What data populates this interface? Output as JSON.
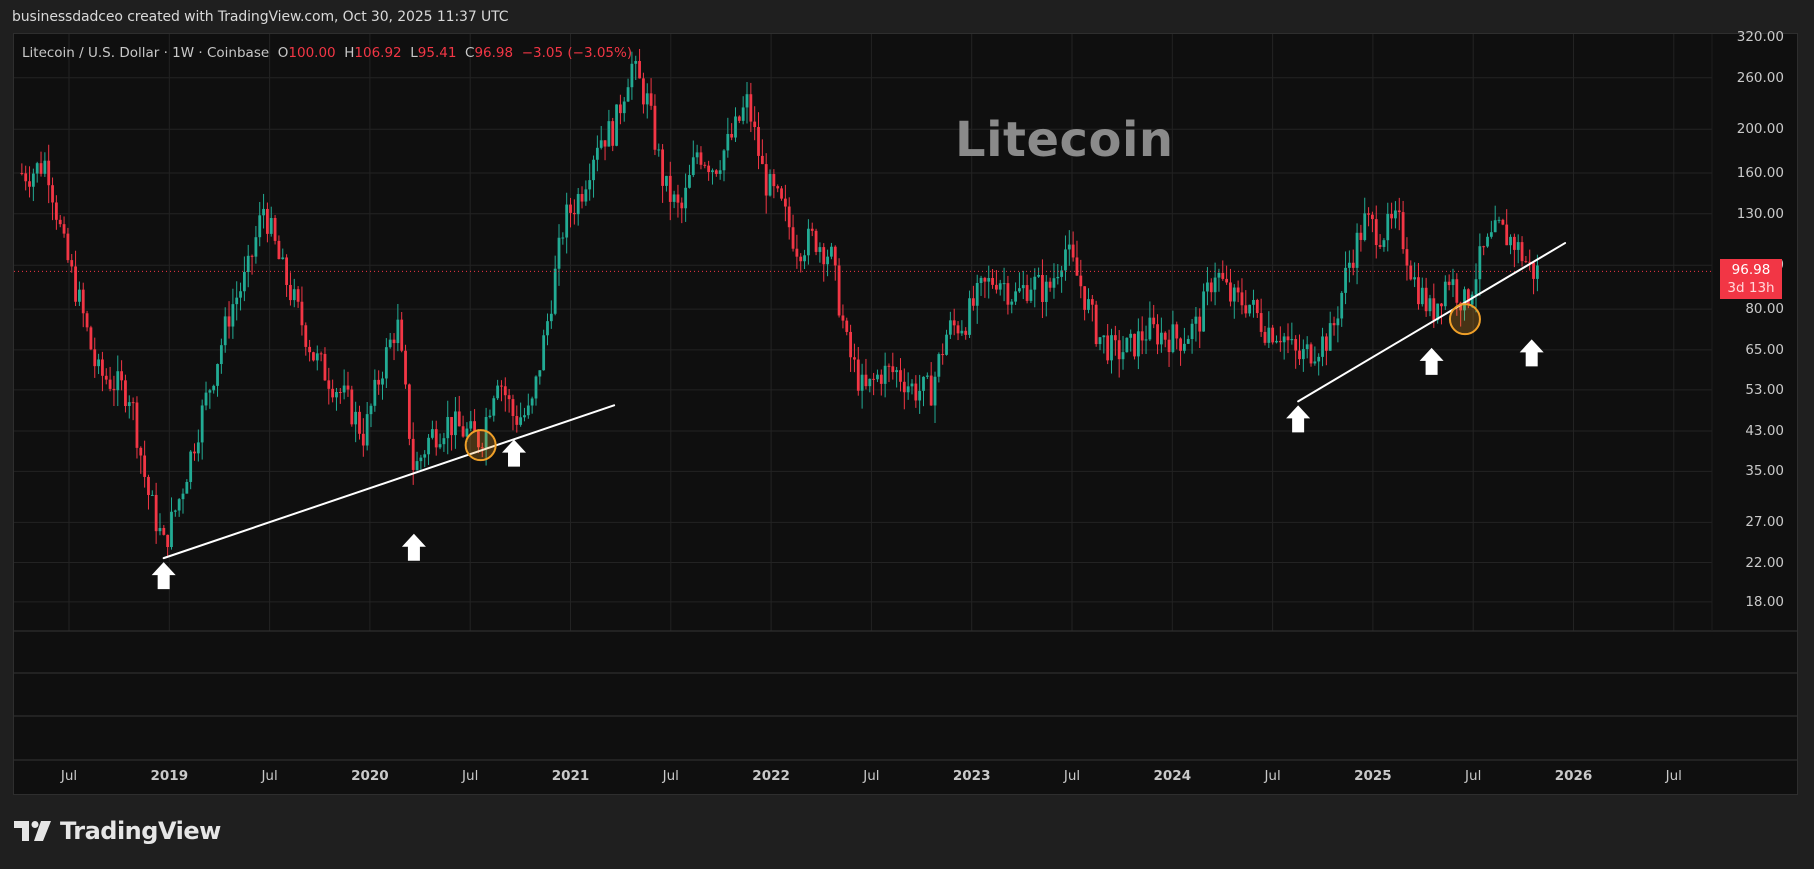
{
  "credit": "businessdadceo created with TradingView.com, Oct 30, 2025 11:37 UTC",
  "legend": {
    "symbol": "Litecoin / U.S. Dollar · 1W · Coinbase",
    "o_label": "O",
    "o": "100.00",
    "h_label": "H",
    "h": "106.92",
    "l_label": "L",
    "l": "95.41",
    "c_label": "C",
    "c": "96.98",
    "change": "−3.05 (−3.05%)"
  },
  "watermark": "Litecoin",
  "last_price": {
    "value": "96.98",
    "countdown": "3d 13h"
  },
  "brand": {
    "name": "TradingView",
    "icon": "tradingview-logo-icon"
  },
  "colors": {
    "up": "#22ab94",
    "down": "#f23645",
    "trendline": "#ffffff",
    "highlight": "#f0a028",
    "grid": "#232323",
    "background": "#0f0f0f"
  },
  "chart_data": {
    "type": "candlestick",
    "title": "Litecoin / U.S. Dollar · 1W · Coinbase",
    "annotation_text": "Litecoin",
    "yscale": "log",
    "ylim": [
      16,
      330
    ],
    "price_ticks": [
      "320.00",
      "260.00",
      "200.00",
      "160.00",
      "130.00",
      "100.00",
      "80.00",
      "65.00",
      "53.00",
      "43.00",
      "35.00",
      "27.00",
      "22.00",
      "18.00"
    ],
    "time_ticks": [
      {
        "label": "Jul",
        "year": false
      },
      {
        "label": "2019",
        "year": true
      },
      {
        "label": "Jul",
        "year": false
      },
      {
        "label": "2020",
        "year": true
      },
      {
        "label": "Jul",
        "year": false
      },
      {
        "label": "2021",
        "year": true
      },
      {
        "label": "Jul",
        "year": false
      },
      {
        "label": "2022",
        "year": true
      },
      {
        "label": "Jul",
        "year": false
      },
      {
        "label": "2023",
        "year": true
      },
      {
        "label": "Jul",
        "year": false
      },
      {
        "label": "2024",
        "year": true
      },
      {
        "label": "Jul",
        "year": false
      },
      {
        "label": "2025",
        "year": true
      },
      {
        "label": "Jul",
        "year": false
      },
      {
        "label": "2026",
        "year": true
      },
      {
        "label": "Jul",
        "year": false
      }
    ],
    "last_close": 96.98,
    "trendlines": [
      {
        "from": {
          "date": "2018-12",
          "price": 22.5
        },
        "to": {
          "date": "2021-03",
          "price": 49
        }
      },
      {
        "from": {
          "date": "2024-08",
          "price": 50
        },
        "to": {
          "date": "2025-12",
          "price": 112
        }
      }
    ],
    "markers": [
      {
        "type": "up-arrow",
        "date": "2018-12",
        "price": 22.5
      },
      {
        "type": "up-arrow",
        "date": "2020-03",
        "price": 26
      },
      {
        "type": "up-arrow",
        "date": "2020-09",
        "price": 42
      },
      {
        "type": "up-arrow",
        "date": "2024-08",
        "price": 50
      },
      {
        "type": "up-arrow",
        "date": "2025-04",
        "price": 67
      },
      {
        "type": "up-arrow",
        "date": "2025-10",
        "price": 70
      },
      {
        "type": "circle",
        "date": "2020-07",
        "price": 40
      },
      {
        "type": "circle",
        "date": "2025-06",
        "price": 76
      }
    ],
    "anchors": [
      [
        "2018-04",
        160
      ],
      [
        "2018-05",
        170
      ],
      [
        "2018-06",
        110
      ],
      [
        "2018-07",
        82
      ],
      [
        "2018-08",
        58
      ],
      [
        "2018-09",
        55
      ],
      [
        "2018-10",
        52
      ],
      [
        "2018-11",
        32
      ],
      [
        "2018-12",
        24
      ],
      [
        "2019-01",
        31
      ],
      [
        "2019-02",
        43
      ],
      [
        "2019-03",
        58
      ],
      [
        "2019-04",
        80
      ],
      [
        "2019-05",
        95
      ],
      [
        "2019-06",
        135
      ],
      [
        "2019-07",
        100
      ],
      [
        "2019-08",
        80
      ],
      [
        "2019-09",
        63
      ],
      [
        "2019-10",
        56
      ],
      [
        "2019-11",
        50
      ],
      [
        "2019-12",
        42
      ],
      [
        "2020-01",
        58
      ],
      [
        "2020-02",
        75
      ],
      [
        "2020-03",
        35
      ],
      [
        "2020-04",
        42
      ],
      [
        "2020-05",
        45
      ],
      [
        "2020-06",
        43
      ],
      [
        "2020-07",
        41
      ],
      [
        "2020-08",
        58
      ],
      [
        "2020-09",
        46
      ],
      [
        "2020-10",
        47
      ],
      [
        "2020-11",
        75
      ],
      [
        "2020-12",
        125
      ],
      [
        "2021-01",
        145
      ],
      [
        "2021-02",
        190
      ],
      [
        "2021-03",
        200
      ],
      [
        "2021-04",
        280
      ],
      [
        "2021-05",
        230
      ],
      [
        "2021-06",
        150
      ],
      [
        "2021-07",
        130
      ],
      [
        "2021-08",
        180
      ],
      [
        "2021-09",
        165
      ],
      [
        "2021-10",
        190
      ],
      [
        "2021-11",
        230
      ],
      [
        "2021-12",
        155
      ],
      [
        "2022-01",
        135
      ],
      [
        "2022-02",
        110
      ],
      [
        "2022-03",
        115
      ],
      [
        "2022-04",
        105
      ],
      [
        "2022-05",
        65
      ],
      [
        "2022-06",
        52
      ],
      [
        "2022-07",
        58
      ],
      [
        "2022-08",
        58
      ],
      [
        "2022-09",
        53
      ],
      [
        "2022-10",
        53
      ],
      [
        "2022-11",
        72
      ],
      [
        "2022-12",
        75
      ],
      [
        "2023-01",
        88
      ],
      [
        "2023-02",
        95
      ],
      [
        "2023-03",
        85
      ],
      [
        "2023-04",
        92
      ],
      [
        "2023-05",
        87
      ],
      [
        "2023-06",
        110
      ],
      [
        "2023-07",
        90
      ],
      [
        "2023-08",
        70
      ],
      [
        "2023-09",
        64
      ],
      [
        "2023-10",
        66
      ],
      [
        "2023-11",
        72
      ],
      [
        "2023-12",
        70
      ],
      [
        "2024-01",
        69
      ],
      [
        "2024-02",
        74
      ],
      [
        "2024-03",
        98
      ],
      [
        "2024-04",
        84
      ],
      [
        "2024-05",
        83
      ],
      [
        "2024-06",
        73
      ],
      [
        "2024-07",
        71
      ],
      [
        "2024-08",
        62
      ],
      [
        "2024-09",
        66
      ],
      [
        "2024-10",
        70
      ],
      [
        "2024-11",
        100
      ],
      [
        "2024-12",
        125
      ],
      [
        "2025-01",
        118
      ],
      [
        "2025-02",
        125
      ],
      [
        "2025-03",
        92
      ],
      [
        "2025-04",
        78
      ],
      [
        "2025-05",
        95
      ],
      [
        "2025-06",
        82
      ],
      [
        "2025-07",
        105
      ],
      [
        "2025-08",
        120
      ],
      [
        "2025-09",
        112
      ],
      [
        "2025-10",
        97
      ]
    ]
  }
}
